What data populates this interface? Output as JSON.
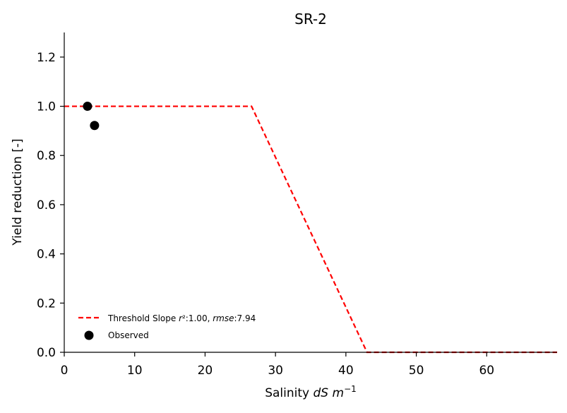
{
  "chart_data": {
    "type": "line",
    "title": "SR-2",
    "xlabel": "Salinity dS m⁻¹",
    "ylabel": "Yield reduction [-]",
    "xlim": [
      0,
      70
    ],
    "ylim": [
      0,
      1.3
    ],
    "xticks": [
      0,
      10,
      20,
      30,
      40,
      50,
      60
    ],
    "yticks": [
      0.0,
      0.2,
      0.4,
      0.6,
      0.8,
      1.0,
      1.2
    ],
    "xtick_labels": [
      "0",
      "10",
      "20",
      "30",
      "40",
      "50",
      "60"
    ],
    "ytick_labels": [
      "0.0",
      "0.2",
      "0.4",
      "0.6",
      "0.8",
      "1.0",
      "1.2"
    ],
    "grid": false,
    "legend_position": "lower-left",
    "series": [
      {
        "name": "Threshold Slope r²:1.00, rmse:7.94",
        "kind": "line",
        "style": "dashed",
        "color": "#ff0000",
        "x": [
          0,
          26.6,
          43.0,
          70
        ],
        "y": [
          1.0,
          1.0,
          0.0,
          0.0
        ]
      },
      {
        "name": "Observed",
        "kind": "scatter",
        "color": "#000000",
        "x": [
          3.3,
          4.3
        ],
        "y": [
          1.0,
          0.922
        ]
      }
    ]
  }
}
